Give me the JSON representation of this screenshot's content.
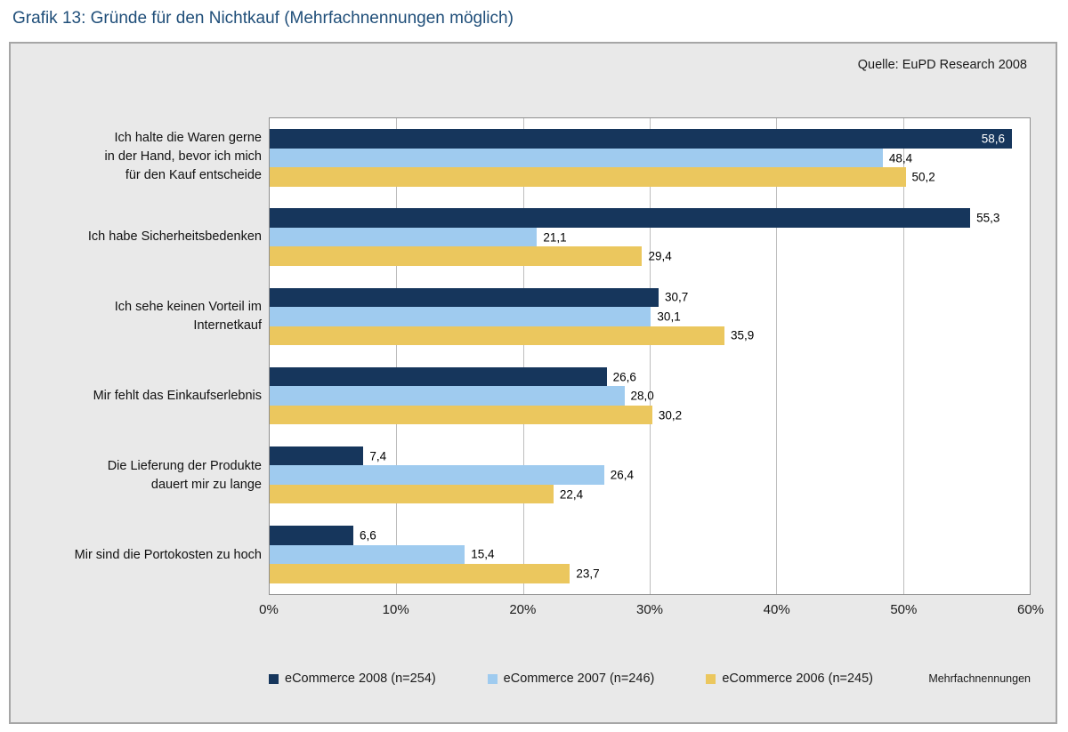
{
  "page": {
    "title": "Grafik 13: Gründe für den Nichtkauf (Mehrfachnennungen möglich)"
  },
  "panel": {
    "source": "Quelle: EuPD Research 2008",
    "footnote": "Mehrfachnennungen"
  },
  "chart_data": {
    "type": "bar",
    "orientation": "horizontal",
    "title": "Gründe für den Nichtkauf (Mehrfachnennungen möglich)",
    "xlabel": "",
    "ylabel": "",
    "xlim": [
      0,
      60
    ],
    "xticks": [
      0,
      10,
      20,
      30,
      40,
      50,
      60
    ],
    "xtick_suffix": "%",
    "grid": "vertical",
    "legend_position": "bottom",
    "decimal_separator": ",",
    "categories": [
      "Ich halte die Waren gerne\nin der Hand, bevor ich mich\nfür den Kauf entscheide",
      "Ich habe Sicherheitsbedenken",
      "Ich sehe keinen Vorteil im\nInternetkauf",
      "Mir fehlt das Einkaufserlebnis",
      "Die Lieferung der Produkte\ndauert mir zu lange",
      "Mir sind die Portokosten zu hoch"
    ],
    "series": [
      {
        "name": "eCommerce 2008 (n=254)",
        "color": "#16365c",
        "values": [
          58.6,
          55.3,
          30.7,
          26.6,
          7.4,
          6.6
        ]
      },
      {
        "name": "eCommerce 2007 (n=246)",
        "color": "#9fcbef",
        "values": [
          48.4,
          21.1,
          30.1,
          28.0,
          26.4,
          15.4
        ]
      },
      {
        "name": "eCommerce 2006 (n=245)",
        "color": "#ebc75e",
        "values": [
          50.2,
          29.4,
          35.9,
          30.2,
          22.4,
          23.7
        ]
      }
    ],
    "inside_value_labels": [
      {
        "series": 0,
        "category": 0
      }
    ]
  }
}
